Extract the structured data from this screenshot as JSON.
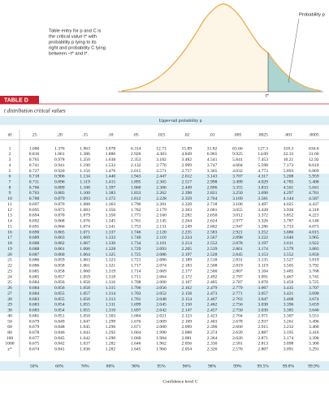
{
  "figure": {
    "caption": [
      "Table entry for p and C is",
      "the critical value t* with",
      "probability p lying to its",
      "right and probability C lying",
      "between −t* and t*."
    ],
    "prob_label": "Probability p",
    "tstar_label": "t*"
  },
  "table": {
    "label": "TABLE D",
    "title": "t distribution critical values",
    "upper_header": "Upper-tail probability p",
    "df_header": "df",
    "columns": [
      ".25",
      ".20",
      ".15",
      ".10",
      ".05",
      ".025",
      ".02",
      ".01",
      ".005",
      ".0025",
      ".001",
      ".0005"
    ],
    "rows": [
      {
        "df": "1",
        "values": [
          "1.000",
          "1.376",
          "1.963",
          "3.078",
          "6.314",
          "12.71",
          "15.89",
          "31.82",
          "63.66",
          "127.3",
          "318.3",
          "636.6"
        ]
      },
      {
        "df": "2",
        "values": [
          "0.816",
          "1.061",
          "1.386",
          "1.886",
          "2.920",
          "4.303",
          "4.849",
          "6.965",
          "9.925",
          "14.09",
          "22.33",
          "31.60"
        ]
      },
      {
        "df": "3",
        "values": [
          "0.765",
          "0.978",
          "1.250",
          "1.638",
          "2.353",
          "3.182",
          "3.482",
          "4.541",
          "5.841",
          "7.453",
          "10.21",
          "12.92"
        ]
      },
      {
        "df": "4",
        "values": [
          "0.741",
          "0.941",
          "1.190",
          "1.533",
          "2.132",
          "2.776",
          "2.999",
          "3.747",
          "4.604",
          "5.598",
          "7.173",
          "8.610"
        ]
      },
      {
        "df": "5",
        "values": [
          "0.727",
          "0.920",
          "1.156",
          "1.476",
          "2.015",
          "2.571",
          "2.757",
          "3.365",
          "4.032",
          "4.773",
          "5.893",
          "6.869"
        ]
      },
      {
        "df": "6",
        "values": [
          "0.718",
          "0.906",
          "1.134",
          "1.440",
          "1.943",
          "2.447",
          "2.612",
          "3.143",
          "3.707",
          "4.317",
          "5.208",
          "5.959"
        ]
      },
      {
        "df": "7",
        "values": [
          "0.711",
          "0.896",
          "1.119",
          "1.415",
          "1.895",
          "2.365",
          "2.517",
          "2.998",
          "3.499",
          "4.029",
          "4.785",
          "5.408"
        ]
      },
      {
        "df": "8",
        "values": [
          "0.706",
          "0.889",
          "1.108",
          "1.397",
          "1.860",
          "2.306",
          "2.449",
          "2.896",
          "3.355",
          "3.833",
          "4.501",
          "5.041"
        ]
      },
      {
        "df": "9",
        "values": [
          "0.703",
          "0.883",
          "1.100",
          "1.383",
          "1.833",
          "2.262",
          "2.398",
          "2.821",
          "3.250",
          "3.690",
          "4.297",
          "4.781"
        ]
      },
      {
        "df": "10",
        "values": [
          "0.700",
          "0.879",
          "1.093",
          "1.372",
          "1.812",
          "2.228",
          "2.359",
          "2.764",
          "3.169",
          "3.581",
          "4.144",
          "4.587"
        ]
      },
      {
        "df": "11",
        "values": [
          "0.697",
          "0.876",
          "1.088",
          "1.363",
          "1.796",
          "2.201",
          "2.328",
          "2.718",
          "3.106",
          "3.497",
          "4.025",
          "4.437"
        ]
      },
      {
        "df": "12",
        "values": [
          "0.695",
          "0.873",
          "1.083",
          "1.356",
          "1.782",
          "2.179",
          "2.303",
          "2.681",
          "3.055",
          "3.428",
          "3.930",
          "4.318"
        ]
      },
      {
        "df": "13",
        "values": [
          "0.694",
          "0.870",
          "1.079",
          "1.350",
          "1.771",
          "2.160",
          "2.282",
          "2.650",
          "3.012",
          "3.372",
          "3.852",
          "4.221"
        ]
      },
      {
        "df": "14",
        "values": [
          "0.692",
          "0.868",
          "1.076",
          "1.345",
          "1.761",
          "2.145",
          "2.264",
          "2.624",
          "2.977",
          "3.326",
          "3.787",
          "4.140"
        ]
      },
      {
        "df": "15",
        "values": [
          "0.691",
          "0.866",
          "1.074",
          "1.341",
          "1.753",
          "2.131",
          "2.249",
          "2.602",
          "2.947",
          "3.286",
          "3.733",
          "4.073"
        ]
      },
      {
        "df": "16",
        "values": [
          "0.690",
          "0.865",
          "1.071",
          "1.337",
          "1.746",
          "2.120",
          "2.235",
          "2.583",
          "2.921",
          "3.252",
          "3.686",
          "4.015"
        ]
      },
      {
        "df": "17",
        "values": [
          "0.689",
          "0.863",
          "1.069",
          "1.333",
          "1.740",
          "2.110",
          "2.224",
          "2.567",
          "2.898",
          "3.222",
          "3.646",
          "3.965"
        ]
      },
      {
        "df": "18",
        "values": [
          "0.688",
          "0.862",
          "1.067",
          "1.330",
          "1.734",
          "2.101",
          "2.214",
          "2.552",
          "2.878",
          "3.197",
          "3.611",
          "3.922"
        ]
      },
      {
        "df": "19",
        "values": [
          "0.688",
          "0.861",
          "1.066",
          "1.328",
          "1.729",
          "2.093",
          "2.205",
          "2.539",
          "2.861",
          "3.174",
          "3.579",
          "3.883"
        ]
      },
      {
        "df": "20",
        "values": [
          "0.687",
          "0.860",
          "1.064",
          "1.325",
          "1.725",
          "2.086",
          "2.197",
          "2.528",
          "2.845",
          "3.153",
          "3.552",
          "3.850"
        ]
      },
      {
        "df": "21",
        "values": [
          "0.686",
          "0.859",
          "1.063",
          "1.323",
          "1.721",
          "2.080",
          "2.189",
          "2.518",
          "2.831",
          "3.135",
          "3.527",
          "3.819"
        ]
      },
      {
        "df": "22",
        "values": [
          "0.686",
          "0.858",
          "1.061",
          "1.321",
          "1.717",
          "2.074",
          "2.183",
          "2.508",
          "2.819",
          "3.119",
          "3.505",
          "3.792"
        ]
      },
      {
        "df": "23",
        "values": [
          "0.685",
          "0.858",
          "1.060",
          "1.319",
          "1.714",
          "2.069",
          "2.177",
          "2.500",
          "2.807",
          "3.104",
          "3.485",
          "3.768"
        ]
      },
      {
        "df": "24",
        "values": [
          "0.685",
          "0.857",
          "1.059",
          "1.318",
          "1.711",
          "2.064",
          "2.172",
          "2.492",
          "2.797",
          "3.091",
          "3.467",
          "3.745"
        ]
      },
      {
        "df": "25",
        "values": [
          "0.684",
          "0.856",
          "1.058",
          "1.316",
          "1.708",
          "2.060",
          "2.167",
          "2.485",
          "2.787",
          "3.078",
          "3.450",
          "3.725"
        ]
      },
      {
        "df": "26",
        "values": [
          "0.684",
          "0.856",
          "1.058",
          "1.315",
          "1.706",
          "2.056",
          "2.162",
          "2.479",
          "2.779",
          "3.067",
          "3.435",
          "3.707"
        ]
      },
      {
        "df": "27",
        "values": [
          "0.684",
          "0.855",
          "1.057",
          "1.314",
          "1.703",
          "2.052",
          "2.158",
          "2.473",
          "2.771",
          "3.057",
          "3.421",
          "3.690"
        ]
      },
      {
        "df": "28",
        "values": [
          "0.683",
          "0.855",
          "1.056",
          "1.313",
          "1.701",
          "2.048",
          "2.154",
          "2.467",
          "2.763",
          "3.047",
          "3.408",
          "3.674"
        ]
      },
      {
        "df": "29",
        "values": [
          "0.683",
          "0.854",
          "1.055",
          "1.311",
          "1.699",
          "2.045",
          "2.150",
          "2.462",
          "2.756",
          "3.038",
          "3.396",
          "3.659"
        ]
      },
      {
        "df": "30",
        "values": [
          "0.683",
          "0.854",
          "1.055",
          "1.310",
          "1.697",
          "2.042",
          "2.147",
          "2.457",
          "2.750",
          "3.030",
          "3.385",
          "3.646"
        ]
      },
      {
        "df": "40",
        "values": [
          "0.681",
          "0.851",
          "1.050",
          "1.303",
          "1.684",
          "2.021",
          "2.123",
          "2.423",
          "2.704",
          "2.971",
          "3.307",
          "3.551"
        ]
      },
      {
        "df": "50",
        "values": [
          "0.679",
          "0.849",
          "1.047",
          "1.299",
          "1.676",
          "2.009",
          "2.109",
          "2.403",
          "2.678",
          "2.937",
          "3.261",
          "3.496"
        ]
      },
      {
        "df": "60",
        "values": [
          "0.679",
          "0.848",
          "1.045",
          "1.296",
          "1.671",
          "2.000",
          "2.099",
          "2.390",
          "2.660",
          "2.915",
          "3.232",
          "3.460"
        ]
      },
      {
        "df": "80",
        "values": [
          "0.678",
          "0.846",
          "1.043",
          "1.292",
          "1.664",
          "1.990",
          "2.088",
          "2.374",
          "2.639",
          "2.887",
          "3.195",
          "3.416"
        ]
      },
      {
        "df": "100",
        "values": [
          "0.677",
          "0.845",
          "1.042",
          "1.290",
          "1.660",
          "1.984",
          "2.081",
          "2.364",
          "2.626",
          "2.871",
          "3.174",
          "3.390"
        ]
      },
      {
        "df": "1000",
        "values": [
          "0.675",
          "0.842",
          "1.037",
          "1.282",
          "1.646",
          "1.962",
          "2.056",
          "2.330",
          "2.581",
          "2.813",
          "3.098",
          "3.300"
        ]
      },
      {
        "df": "z*",
        "values": [
          "0.674",
          "0.841",
          "1.036",
          "1.282",
          "1.645",
          "1.960",
          "2.054",
          "2.326",
          "2.576",
          "2.807",
          "3.091",
          "3.291"
        ]
      }
    ],
    "confidence": [
      "50%",
      "60%",
      "70%",
      "80%",
      "90%",
      "95%",
      "96%",
      "98%",
      "99%",
      "99.5%",
      "99.8%",
      "99.9%"
    ],
    "confidence_header": "Confidence level C"
  }
}
